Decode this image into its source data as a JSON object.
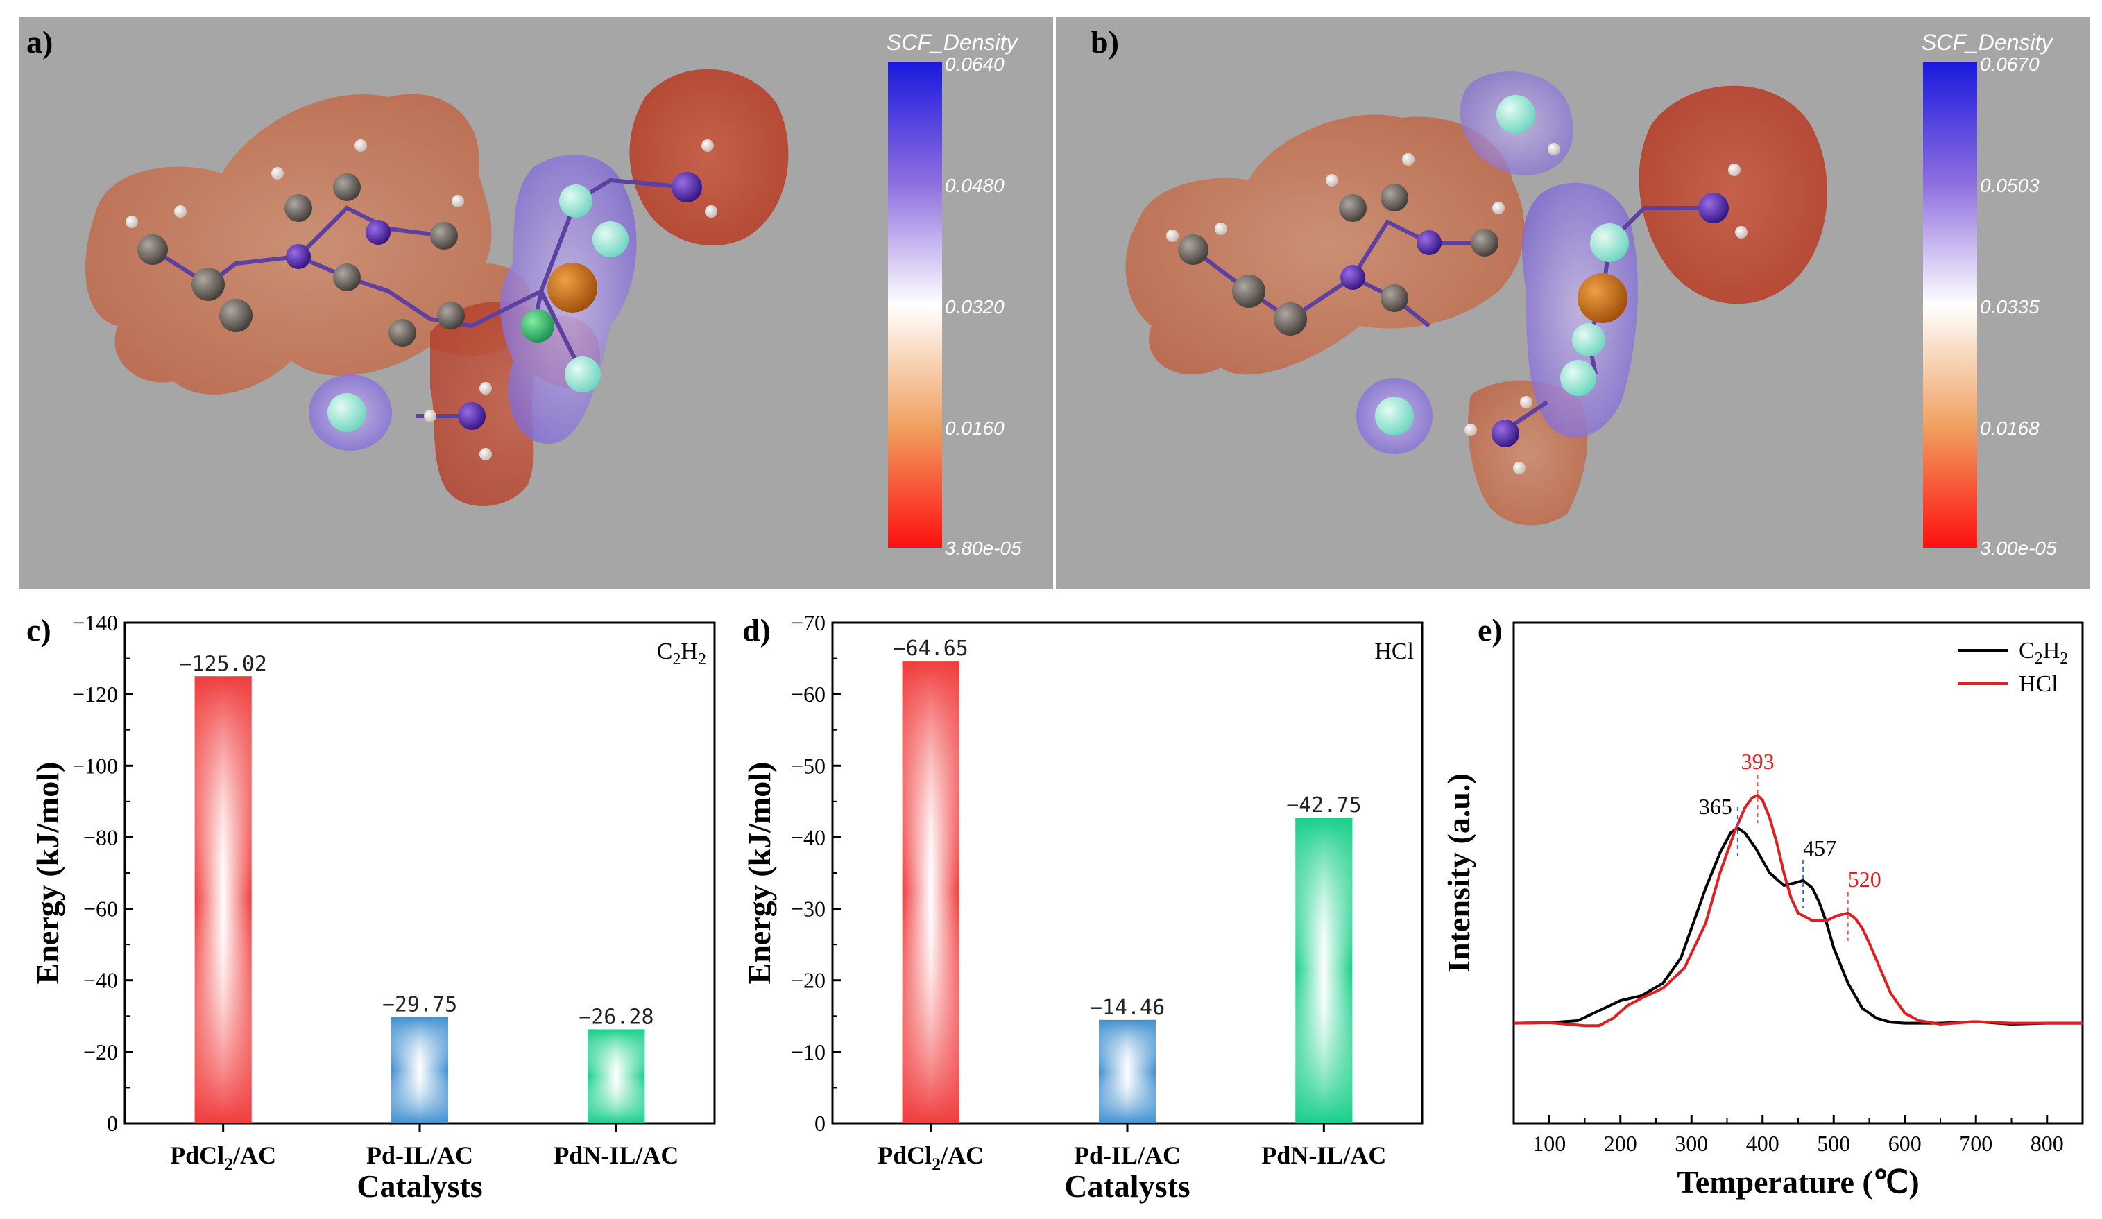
{
  "panels": {
    "a": {
      "letter": "a)",
      "colorbar": {
        "title": "SCF_Density",
        "ticks": [
          "0.0640",
          "0.0480",
          "0.0320",
          "0.0160",
          "3.80e-05"
        ]
      }
    },
    "b": {
      "letter": "b)",
      "colorbar": {
        "title": "SCF_Density",
        "ticks": [
          "0.0670",
          "0.0503",
          "0.0335",
          "0.0168",
          "3.00e-05"
        ]
      }
    }
  },
  "colors": {
    "panel_bg": "#a6a6a6",
    "red_bar": "#f03c3c",
    "blue_bar": "#3f8fd0",
    "green_bar": "#17cf8a",
    "c2h2_line": "#000000",
    "hcl_line": "#e02020",
    "red_peak_label": "#e02020"
  },
  "chart_data": [
    {
      "id": "c",
      "letter": "c)",
      "type": "bar",
      "gas_label": "C",
      "gas_sub": "2",
      "gas_label2": "H",
      "gas_sub2": "2",
      "categories": [
        "PdCl2/AC",
        "Pd-IL/AC",
        "PdN-IL/AC"
      ],
      "category_parts": [
        [
          "PdCl",
          "2",
          "/AC"
        ],
        [
          "Pd-IL/AC",
          "",
          ""
        ],
        [
          "PdN-IL/AC",
          "",
          ""
        ]
      ],
      "values": [
        -125.02,
        -29.75,
        -26.28
      ],
      "value_labels": [
        "−125.02",
        "−29.75",
        "−26.28"
      ],
      "xlabel": "Catalysts",
      "ylabel": "Energy (kJ/mol)",
      "ylim": [
        0,
        -140
      ],
      "yticks": [
        0,
        -20,
        -40,
        -60,
        -80,
        -100,
        -120,
        -140
      ],
      "ytick_labels": [
        "0",
        "−20",
        "−40",
        "−60",
        "−80",
        "−100",
        "−120",
        "−140"
      ]
    },
    {
      "id": "d",
      "letter": "d)",
      "type": "bar",
      "gas_label": "HCl",
      "categories": [
        "PdCl2/AC",
        "Pd-IL/AC",
        "PdN-IL/AC"
      ],
      "category_parts": [
        [
          "PdCl",
          "2",
          "/AC"
        ],
        [
          "Pd-IL/AC",
          "",
          ""
        ],
        [
          "PdN-IL/AC",
          "",
          ""
        ]
      ],
      "values": [
        -64.65,
        -14.46,
        -42.75
      ],
      "value_labels": [
        "−64.65",
        "−14.46",
        "−42.75"
      ],
      "xlabel": "Catalysts",
      "ylabel": "Energy (kJ/mol)",
      "ylim": [
        0,
        -70
      ],
      "yticks": [
        0,
        -10,
        -20,
        -30,
        -40,
        -50,
        -60,
        -70
      ],
      "ytick_labels": [
        "0",
        "−10",
        "−20",
        "−30",
        "−40",
        "−50",
        "−60",
        "−70"
      ]
    },
    {
      "id": "e",
      "letter": "e)",
      "type": "line",
      "xlabel": "Temperature (℃)",
      "ylabel": "Intensity (a.u.)",
      "xlim": [
        50,
        850
      ],
      "xticks": [
        100,
        200,
        300,
        400,
        500,
        600,
        700,
        800
      ],
      "xtick_labels": [
        "100",
        "200",
        "300",
        "400",
        "500",
        "600",
        "700",
        "800"
      ],
      "ylim": [
        0,
        1
      ],
      "series": [
        {
          "name": "C2H2",
          "legend_parts": [
            "C",
            "2",
            "H",
            "2"
          ],
          "x": [
            50,
            100,
            140,
            170,
            200,
            230,
            260,
            285,
            300,
            320,
            340,
            355,
            365,
            375,
            390,
            410,
            430,
            445,
            457,
            470,
            480,
            490,
            500,
            520,
            540,
            560,
            580,
            600,
            650,
            700,
            750,
            800,
            850
          ],
          "y": [
            0.2,
            0.201,
            0.205,
            0.225,
            0.245,
            0.255,
            0.28,
            0.33,
            0.39,
            0.47,
            0.54,
            0.58,
            0.59,
            0.58,
            0.55,
            0.5,
            0.475,
            0.48,
            0.485,
            0.47,
            0.44,
            0.4,
            0.35,
            0.28,
            0.23,
            0.21,
            0.202,
            0.2,
            0.2,
            0.203,
            0.198,
            0.2,
            0.2
          ]
        },
        {
          "name": "HCl",
          "legend_parts": [
            "HCl",
            "",
            "",
            ""
          ],
          "x": [
            50,
            100,
            150,
            170,
            190,
            210,
            230,
            260,
            290,
            320,
            340,
            360,
            375,
            385,
            393,
            400,
            410,
            420,
            430,
            440,
            450,
            470,
            490,
            505,
            520,
            530,
            540,
            550,
            565,
            580,
            600,
            620,
            650,
            700,
            750,
            800,
            850
          ],
          "y": [
            0.2,
            0.201,
            0.195,
            0.195,
            0.21,
            0.235,
            0.25,
            0.27,
            0.31,
            0.4,
            0.5,
            0.58,
            0.63,
            0.65,
            0.655,
            0.645,
            0.61,
            0.56,
            0.5,
            0.45,
            0.42,
            0.405,
            0.405,
            0.415,
            0.42,
            0.41,
            0.39,
            0.36,
            0.31,
            0.26,
            0.22,
            0.205,
            0.198,
            0.203,
            0.2,
            0.2,
            0.2
          ]
        }
      ],
      "annotations": [
        {
          "x": 365,
          "label": "365",
          "series": "C2H2"
        },
        {
          "x": 393,
          "label": "393",
          "series": "HCl"
        },
        {
          "x": 457,
          "label": "457",
          "series": "C2H2"
        },
        {
          "x": 520,
          "label": "520",
          "series": "HCl"
        }
      ]
    }
  ]
}
